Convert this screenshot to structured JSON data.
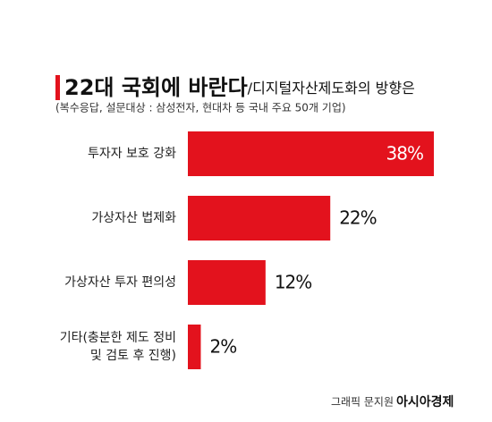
{
  "chart_data": {
    "type": "bar",
    "orientation": "horizontal",
    "title": "22대 국회에 바란다",
    "subtitle": "/디지털자산제도화의 방향은",
    "note": "(복수응답, 설문대상 : 삼성전자, 현대차 등 국내 주요 50개 기업)",
    "categories": [
      "투자자 보호 강화",
      "가상자산 법제화",
      "가상자산 투자 편의성",
      "기타(충분한 제도 정비 및 검토 후 진행)"
    ],
    "values": [
      38,
      22,
      12,
      2
    ],
    "value_labels": [
      "38%",
      "22%",
      "12%",
      "2%"
    ],
    "color": "#e3121d",
    "credit": "그래픽 문지원",
    "source": "아시아경제"
  }
}
